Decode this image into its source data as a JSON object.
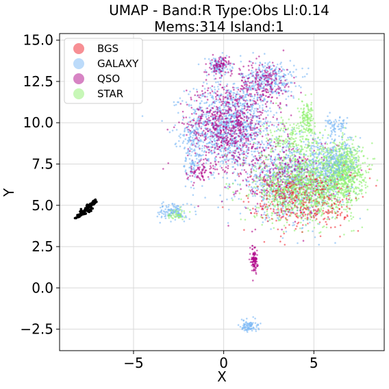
{
  "chart_data": {
    "type": "scatter",
    "title": "UMAP  -  Band:R Type:Obs Ll:0.14",
    "subtitle": "Mems:314 Island:1",
    "xlabel": "X",
    "ylabel": "Y",
    "xlim": [
      -9.1,
      8.9
    ],
    "ylim": [
      -3.8,
      15.4
    ],
    "xticks": [
      {
        "value": -5,
        "label": "−5"
      },
      {
        "value": 0,
        "label": "0"
      },
      {
        "value": 5,
        "label": "5"
      }
    ],
    "yticks": [
      {
        "value": -2.5,
        "label": "−2.5"
      },
      {
        "value": 0.0,
        "label": "0.0"
      },
      {
        "value": 2.5,
        "label": "2.5"
      },
      {
        "value": 5.0,
        "label": "5.0"
      },
      {
        "value": 7.5,
        "label": "7.5"
      },
      {
        "value": 10.0,
        "label": "10.0"
      },
      {
        "value": 12.5,
        "label": "12.5"
      },
      {
        "value": 15.0,
        "label": "15.0"
      }
    ],
    "grid": true,
    "legend_position": "top-left",
    "series": [
      {
        "name": "BGS",
        "color": "#f0202a",
        "alpha": 0.55
      },
      {
        "name": "GALAXY",
        "color": "#7ab8f5",
        "alpha": 0.6
      },
      {
        "name": "QSO",
        "color": "#b00a8a",
        "alpha": 0.6
      },
      {
        "name": "STAR",
        "color": "#90f070",
        "alpha": 0.6
      }
    ],
    "highlight_color": "#000000",
    "clusters": [
      {
        "series": "GALAXY",
        "cx": 0.3,
        "cy": 9.8,
        "sx": 1.4,
        "sy": 1.5,
        "n": 1100
      },
      {
        "series": "QSO",
        "cx": 0.2,
        "cy": 9.9,
        "sx": 1.3,
        "sy": 1.5,
        "n": 700
      },
      {
        "series": "GALAXY",
        "cx": 2.5,
        "cy": 12.6,
        "sx": 0.9,
        "sy": 0.7,
        "n": 300
      },
      {
        "series": "QSO",
        "cx": 2.3,
        "cy": 12.4,
        "sx": 0.9,
        "sy": 0.8,
        "n": 200
      },
      {
        "series": "GALAXY",
        "cx": -0.3,
        "cy": 13.4,
        "sx": 0.4,
        "sy": 0.35,
        "n": 120
      },
      {
        "series": "QSO",
        "cx": -0.2,
        "cy": 13.5,
        "sx": 0.3,
        "sy": 0.3,
        "n": 80
      },
      {
        "series": "GALAXY",
        "cx": 3.8,
        "cy": 6.5,
        "sx": 1.7,
        "sy": 1.3,
        "n": 900
      },
      {
        "series": "QSO",
        "cx": 3.5,
        "cy": 6.7,
        "sx": 1.6,
        "sy": 1.4,
        "n": 400
      },
      {
        "series": "STAR",
        "cx": 4.5,
        "cy": 6.0,
        "sx": 1.6,
        "sy": 1.1,
        "n": 1100
      },
      {
        "series": "STAR",
        "cx": 6.6,
        "cy": 7.2,
        "sx": 0.7,
        "sy": 1.0,
        "n": 700
      },
      {
        "series": "GALAXY",
        "cx": 6.1,
        "cy": 7.6,
        "sx": 0.8,
        "sy": 1.0,
        "n": 250
      },
      {
        "series": "BGS",
        "cx": 4.5,
        "cy": 5.2,
        "sx": 1.8,
        "sy": 1.1,
        "n": 350
      },
      {
        "series": "STAR",
        "cx": 3.9,
        "cy": 8.9,
        "sx": 1.0,
        "sy": 0.8,
        "n": 220
      },
      {
        "series": "STAR",
        "cx": 4.6,
        "cy": 10.3,
        "sx": 0.25,
        "sy": 0.6,
        "n": 120
      },
      {
        "series": "GALAXY",
        "cx": 6.3,
        "cy": 9.8,
        "sx": 0.4,
        "sy": 0.3,
        "n": 60
      },
      {
        "series": "GALAXY",
        "cx": -1.7,
        "cy": 8.0,
        "sx": 0.3,
        "sy": 1.2,
        "n": 120
      },
      {
        "series": "QSO",
        "cx": -1.4,
        "cy": 7.0,
        "sx": 0.4,
        "sy": 0.3,
        "n": 60
      },
      {
        "series": "GALAXY",
        "cx": -2.8,
        "cy": 4.6,
        "sx": 0.45,
        "sy": 0.3,
        "n": 120
      },
      {
        "series": "STAR",
        "cx": -2.6,
        "cy": 4.5,
        "sx": 0.3,
        "sy": 0.2,
        "n": 40
      },
      {
        "series": "QSO",
        "cx": 1.7,
        "cy": 1.7,
        "sx": 0.1,
        "sy": 0.45,
        "n": 110
      },
      {
        "series": "GALAXY",
        "cx": 1.4,
        "cy": -2.3,
        "sx": 0.3,
        "sy": 0.2,
        "n": 90
      }
    ],
    "highlight_points": [
      [
        -8.2,
        4.25
      ],
      [
        -8.1,
        4.35
      ],
      [
        -8.0,
        4.4
      ],
      [
        -7.95,
        4.45
      ],
      [
        -7.9,
        4.5
      ],
      [
        -7.85,
        4.55
      ],
      [
        -7.8,
        4.6
      ],
      [
        -7.75,
        4.62
      ],
      [
        -7.7,
        4.7
      ],
      [
        -7.65,
        4.75
      ],
      [
        -7.6,
        4.78
      ],
      [
        -7.55,
        4.85
      ],
      [
        -7.5,
        4.9
      ],
      [
        -7.45,
        4.92
      ],
      [
        -7.4,
        5.0
      ],
      [
        -7.35,
        5.05
      ],
      [
        -7.3,
        5.1
      ],
      [
        -7.25,
        5.15
      ],
      [
        -7.2,
        5.2
      ],
      [
        -7.15,
        5.25
      ],
      [
        -7.1,
        5.3
      ],
      [
        -7.7,
        4.5
      ],
      [
        -7.5,
        4.65
      ],
      [
        -7.3,
        4.8
      ],
      [
        -7.9,
        4.7
      ],
      [
        -7.6,
        5.0
      ],
      [
        -7.4,
        4.75
      ],
      [
        -8.0,
        4.3
      ],
      [
        -7.2,
        5.05
      ],
      [
        -7.8,
        4.45
      ]
    ]
  }
}
